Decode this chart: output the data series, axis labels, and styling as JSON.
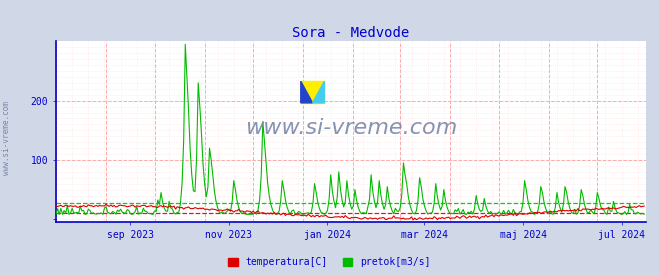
{
  "title": "Sora - Medvode",
  "title_color": "#0000cc",
  "bg_color": "#d0d8e8",
  "plot_bg_color": "#ffffff",
  "xlabel_ticks": [
    "sep 2023",
    "nov 2023",
    "jan 2024",
    "mar 2024",
    "maj 2024",
    "jul 2024"
  ],
  "ylabel_ticks": [
    100,
    200
  ],
  "ylim": [
    -5,
    300
  ],
  "xlim": [
    0,
    365
  ],
  "grid_color": "#ffaaaa",
  "grid_minor_color": "#ffe0e0",
  "temp_color": "#dd0000",
  "flow_color": "#00bb00",
  "watermark_text": "www.si-vreme.com",
  "watermark_color": "#7788aa",
  "legend_labels": [
    "temperatura[C]",
    "pretok[m3/s]"
  ],
  "legend_colors": [
    "#dd0000",
    "#00bb00"
  ],
  "tick_color": "#0000cc",
  "sidebar_text": "www.si-vreme.com",
  "temp_avg_val": 10.0,
  "flow_avg_val": 28.0,
  "axis_left_color": "#0000cc",
  "axis_bottom_color": "#0000cc"
}
